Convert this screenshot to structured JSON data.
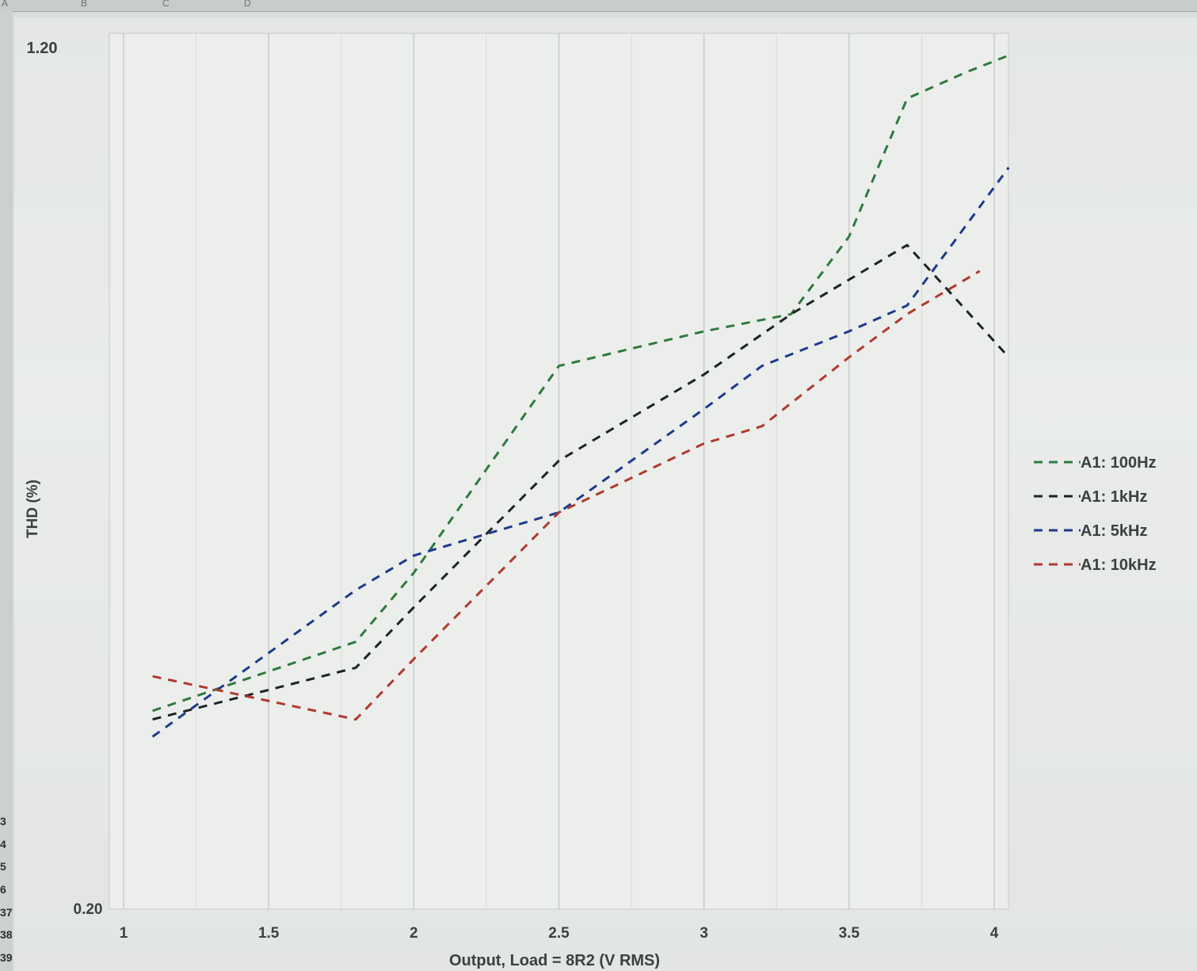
{
  "spreadsheet": {
    "column_letters": [
      "A",
      "B",
      "C",
      "D"
    ],
    "row_numbers": [
      "3",
      "4",
      "5",
      "6",
      "37",
      "38",
      "39"
    ]
  },
  "chart_data": {
    "type": "line",
    "title": "",
    "xlabel": "Output, Load = 8R2 (V RMS)",
    "ylabel": "THD (%)",
    "xlim": [
      1,
      4
    ],
    "ylim": [
      0.2,
      1.2
    ],
    "x_ticks": [
      "1",
      "1.5",
      "2",
      "2.5",
      "3",
      "3.5",
      "4"
    ],
    "y_ticks": [
      "0.20",
      "1.20"
    ],
    "grid": "vertical",
    "legend_position": "right",
    "line_style": "dashed",
    "series": [
      {
        "name": "A1: 100Hz",
        "color": "#2e7a3e",
        "x": [
          1.1,
          1.8,
          2.0,
          2.5,
          3.0,
          3.3,
          3.5,
          3.7,
          3.9,
          4.05
        ],
        "y": [
          0.43,
          0.51,
          0.59,
          0.83,
          0.87,
          0.89,
          0.98,
          1.14,
          1.17,
          1.19
        ]
      },
      {
        "name": "A1: 1kHz",
        "color": "#1f2326",
        "x": [
          1.1,
          1.8,
          2.0,
          2.5,
          3.0,
          3.3,
          3.5,
          3.7,
          4.05
        ],
        "y": [
          0.42,
          0.48,
          0.55,
          0.72,
          0.82,
          0.89,
          0.93,
          0.97,
          0.84
        ]
      },
      {
        "name": "A1: 5kHz",
        "color": "#1e3a8a",
        "x": [
          1.1,
          1.8,
          2.0,
          2.5,
          3.0,
          3.2,
          3.5,
          3.7,
          4.05
        ],
        "y": [
          0.4,
          0.57,
          0.61,
          0.66,
          0.78,
          0.83,
          0.87,
          0.9,
          1.06
        ]
      },
      {
        "name": "A1: 10kHz",
        "color": "#b03a2e",
        "x": [
          1.1,
          1.8,
          2.0,
          2.5,
          3.0,
          3.2,
          3.5,
          3.7,
          3.95
        ],
        "y": [
          0.47,
          0.42,
          0.49,
          0.66,
          0.74,
          0.76,
          0.84,
          0.89,
          0.94
        ]
      }
    ]
  }
}
